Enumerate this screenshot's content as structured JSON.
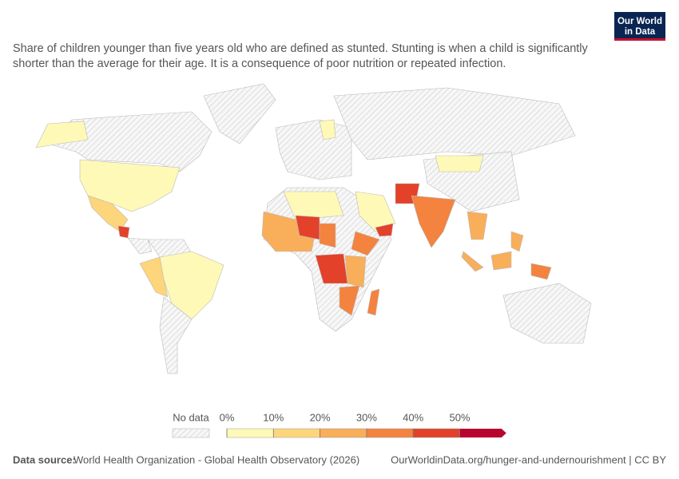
{
  "logo": {
    "line1": "Our World",
    "line2": "in Data"
  },
  "subtitle": [
    "Share of children younger than five years old who are defined as stunted. Stunting is when a child is significantly",
    "shorter than the average for their age. It is a consequence of poor nutrition or repeated infection."
  ],
  "legend": {
    "no_data": "No data",
    "bins": [
      {
        "value": 0,
        "label": "0%"
      },
      {
        "value": 10,
        "label": "10%"
      },
      {
        "value": 20,
        "label": "20%"
      },
      {
        "value": 30,
        "label": "30%"
      },
      {
        "value": 40,
        "label": "40%"
      },
      {
        "value": 50,
        "label": "50%"
      }
    ],
    "colors": [
      "#fef9b6",
      "#fdd57a",
      "#f9ae5a",
      "#f3833f",
      "#e3412a",
      "#b80530"
    ]
  },
  "footer": {
    "source_label": "Data source:",
    "source": "World Health Organization - Global Health Observatory (2026)",
    "url": "OurWorldinData.org/hunger-and-undernourishment | CC BY"
  }
}
